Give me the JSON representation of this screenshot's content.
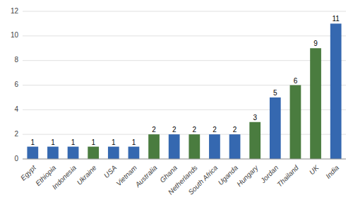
{
  "chart_data": {
    "type": "bar",
    "categories": [
      "Egypt",
      "Ethiopia",
      "Indonesia",
      "Ukraine",
      "USA",
      "Vietnam",
      "Australia",
      "Ghana",
      "Netherlands",
      "South Africa",
      "Uganda",
      "Hungary",
      "Jordan",
      "Thailand",
      "UK",
      "India"
    ],
    "values": [
      1,
      1,
      1,
      1,
      1,
      1,
      2,
      2,
      2,
      2,
      2,
      3,
      5,
      6,
      9,
      11
    ],
    "colors": [
      "#3568b0",
      "#3568b0",
      "#3568b0",
      "#4a7c3f",
      "#3568b0",
      "#3568b0",
      "#4a7c3f",
      "#3568b0",
      "#4a7c3f",
      "#3568b0",
      "#3568b0",
      "#4a7c3f",
      "#3568b0",
      "#4a7c3f",
      "#4a7c3f",
      "#3568b0"
    ],
    "ylim": [
      0,
      12
    ],
    "yticks": [
      0,
      2,
      4,
      6,
      8,
      10,
      12
    ],
    "grid": true,
    "data_labels": true
  }
}
